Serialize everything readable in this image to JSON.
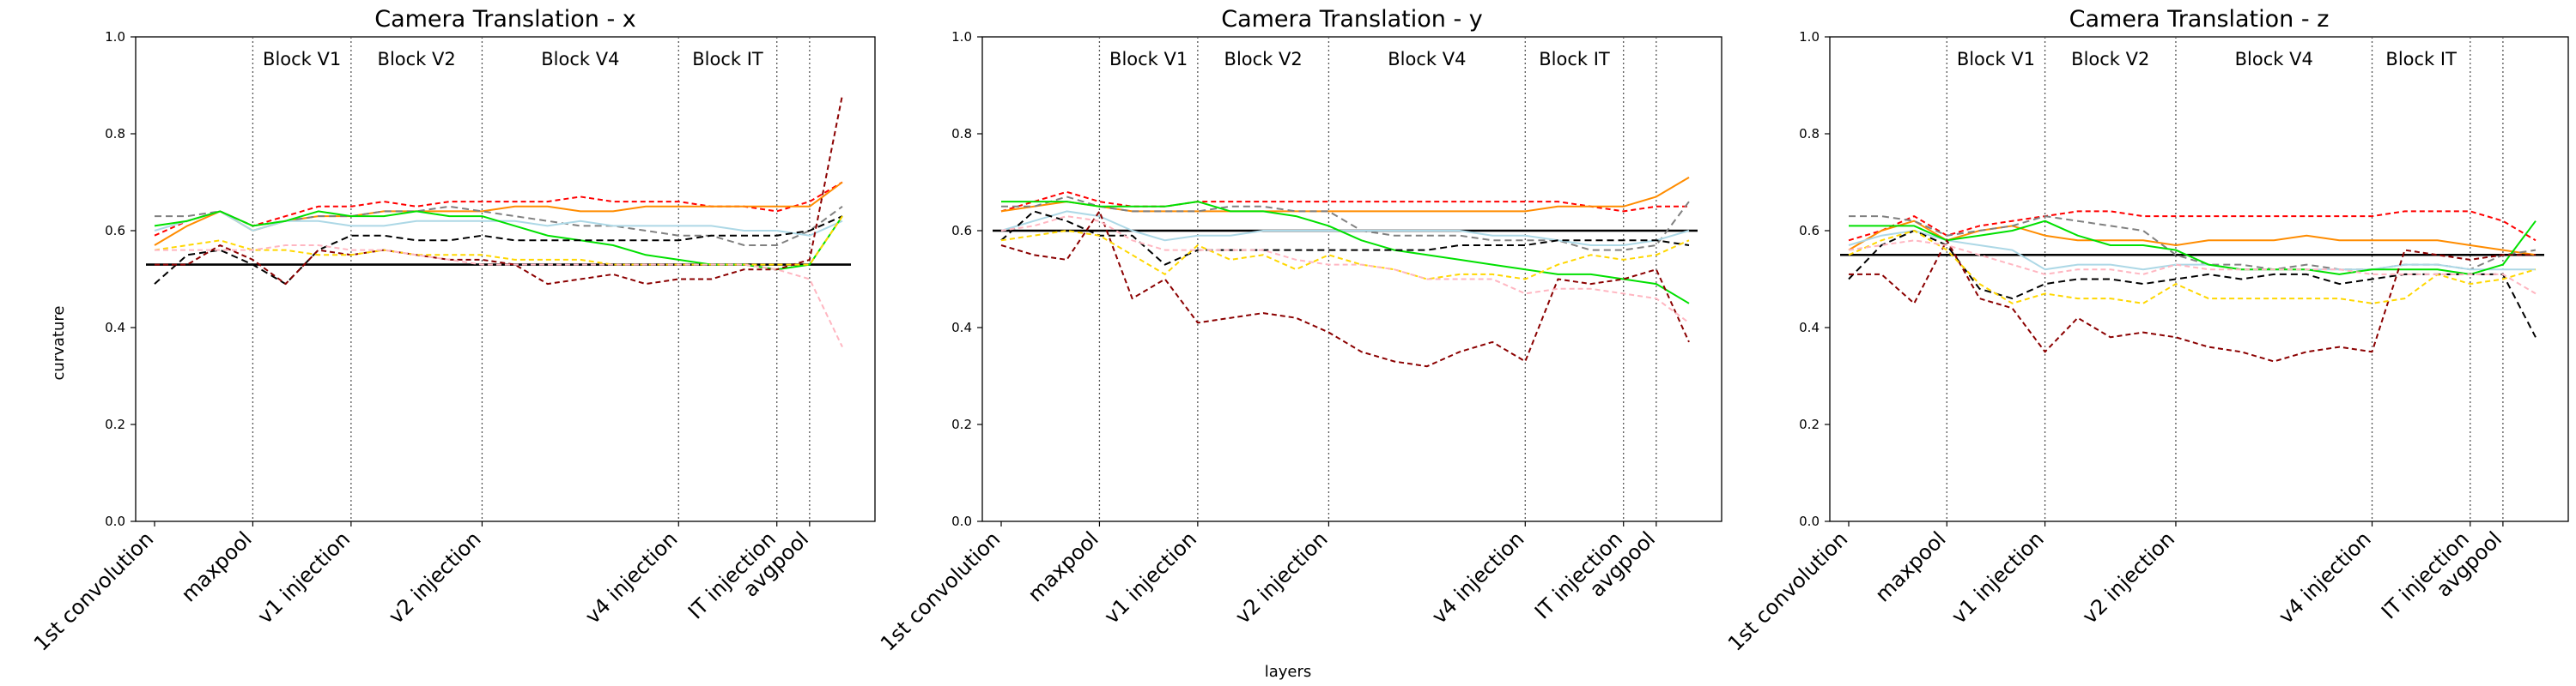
{
  "figure": {
    "xlabel": "layers",
    "ylabel": "curvature"
  },
  "chart_data": [
    {
      "type": "line",
      "title": "Camera Translation - x",
      "ylim": [
        0,
        1
      ],
      "yticks": [
        "0.0",
        "0.2",
        "0.4",
        "0.6",
        "0.8",
        "1.0"
      ],
      "x_count": 22,
      "xticks": [
        {
          "label": "1st convolution",
          "x": 0
        },
        {
          "label": "maxpool",
          "x": 3
        },
        {
          "label": "v1 injection",
          "x": 6
        },
        {
          "label": "v2 injection",
          "x": 10
        },
        {
          "label": "v4 injection",
          "x": 16
        },
        {
          "label": "IT injection",
          "x": 19
        },
        {
          "label": "avgpool",
          "x": 20
        }
      ],
      "blocks": [
        {
          "label": "Block V1",
          "x": 4.5
        },
        {
          "label": "Block V2",
          "x": 8
        },
        {
          "label": "Block V4",
          "x": 13
        },
        {
          "label": "Block IT",
          "x": 17.5
        }
      ],
      "hline": {
        "value": 0.53,
        "color": "#000000"
      },
      "series": [
        {
          "color": "#ff0000",
          "dash": "6,4",
          "values": [
            0.59,
            0.62,
            0.64,
            0.61,
            0.63,
            0.65,
            0.65,
            0.66,
            0.65,
            0.66,
            0.66,
            0.66,
            0.66,
            0.67,
            0.66,
            0.66,
            0.66,
            0.65,
            0.65,
            0.64,
            0.66,
            0.7
          ]
        },
        {
          "color": "#ff8c00",
          "dash": "",
          "values": [
            0.57,
            0.61,
            0.64,
            0.6,
            0.62,
            0.63,
            0.63,
            0.64,
            0.64,
            0.64,
            0.64,
            0.65,
            0.65,
            0.64,
            0.64,
            0.65,
            0.65,
            0.65,
            0.65,
            0.65,
            0.65,
            0.7
          ]
        },
        {
          "color": "#808080",
          "dash": "8,5",
          "values": [
            0.63,
            0.63,
            0.64,
            0.61,
            0.62,
            0.63,
            0.63,
            0.64,
            0.64,
            0.65,
            0.64,
            0.63,
            0.62,
            0.61,
            0.61,
            0.6,
            0.59,
            0.59,
            0.57,
            0.57,
            0.6,
            0.65
          ]
        },
        {
          "color": "#add8e6",
          "dash": "",
          "values": [
            0.6,
            0.62,
            0.64,
            0.6,
            0.62,
            0.62,
            0.61,
            0.61,
            0.62,
            0.62,
            0.62,
            0.62,
            0.61,
            0.62,
            0.61,
            0.61,
            0.61,
            0.61,
            0.6,
            0.6,
            0.59,
            0.62
          ]
        },
        {
          "color": "#00e000",
          "dash": "",
          "values": [
            0.61,
            0.62,
            0.64,
            0.61,
            0.62,
            0.64,
            0.63,
            0.63,
            0.64,
            0.63,
            0.63,
            0.61,
            0.59,
            0.58,
            0.57,
            0.55,
            0.54,
            0.53,
            0.53,
            0.52,
            0.53,
            0.63
          ]
        },
        {
          "color": "#000000",
          "dash": "8,5",
          "values": [
            0.49,
            0.55,
            0.56,
            0.53,
            0.49,
            0.56,
            0.59,
            0.59,
            0.58,
            0.58,
            0.59,
            0.58,
            0.58,
            0.58,
            0.58,
            0.58,
            0.58,
            0.59,
            0.59,
            0.59,
            0.6,
            0.63
          ]
        },
        {
          "color": "#8b0000",
          "dash": "6,4",
          "values": [
            0.53,
            0.53,
            0.57,
            0.54,
            0.49,
            0.56,
            0.55,
            0.56,
            0.55,
            0.54,
            0.54,
            0.53,
            0.49,
            0.5,
            0.51,
            0.49,
            0.5,
            0.5,
            0.52,
            0.52,
            0.54,
            0.88
          ]
        },
        {
          "color": "#ffd700",
          "dash": "6,4",
          "values": [
            0.56,
            0.57,
            0.58,
            0.56,
            0.56,
            0.55,
            0.55,
            0.56,
            0.55,
            0.55,
            0.55,
            0.54,
            0.54,
            0.54,
            0.53,
            0.53,
            0.53,
            0.53,
            0.53,
            0.53,
            0.53,
            0.63
          ]
        },
        {
          "color": "#ffb6c1",
          "dash": "6,4",
          "values": [
            0.56,
            0.56,
            0.56,
            0.56,
            0.57,
            0.57,
            0.56,
            0.56,
            0.55,
            0.54,
            0.53,
            0.53,
            0.53,
            0.53,
            0.53,
            0.53,
            0.53,
            0.53,
            0.53,
            0.52,
            0.5,
            0.36
          ]
        }
      ]
    },
    {
      "type": "line",
      "title": "Camera Translation - y",
      "ylim": [
        0,
        1
      ],
      "yticks": [
        "0.0",
        "0.2",
        "0.4",
        "0.6",
        "0.8",
        "1.0"
      ],
      "x_count": 22,
      "xticks": [
        {
          "label": "1st convolution",
          "x": 0
        },
        {
          "label": "maxpool",
          "x": 3
        },
        {
          "label": "v1 injection",
          "x": 6
        },
        {
          "label": "v2 injection",
          "x": 10
        },
        {
          "label": "v4 injection",
          "x": 16
        },
        {
          "label": "IT injection",
          "x": 19
        },
        {
          "label": "avgpool",
          "x": 20
        }
      ],
      "blocks": [
        {
          "label": "Block V1",
          "x": 4.5
        },
        {
          "label": "Block V2",
          "x": 8
        },
        {
          "label": "Block V4",
          "x": 13
        },
        {
          "label": "Block IT",
          "x": 17.5
        }
      ],
      "hline": {
        "value": 0.6,
        "color": "#000000"
      },
      "series": [
        {
          "color": "#ff0000",
          "dash": "6,4",
          "values": [
            0.64,
            0.66,
            0.68,
            0.66,
            0.65,
            0.65,
            0.66,
            0.66,
            0.66,
            0.66,
            0.66,
            0.66,
            0.66,
            0.66,
            0.66,
            0.66,
            0.66,
            0.66,
            0.65,
            0.64,
            0.65,
            0.65
          ]
        },
        {
          "color": "#ff8c00",
          "dash": "",
          "values": [
            0.64,
            0.65,
            0.66,
            0.65,
            0.64,
            0.64,
            0.64,
            0.64,
            0.64,
            0.64,
            0.64,
            0.64,
            0.64,
            0.64,
            0.64,
            0.64,
            0.64,
            0.65,
            0.65,
            0.65,
            0.67,
            0.71
          ]
        },
        {
          "color": "#808080",
          "dash": "8,5",
          "values": [
            0.65,
            0.65,
            0.67,
            0.65,
            0.64,
            0.64,
            0.64,
            0.65,
            0.65,
            0.64,
            0.64,
            0.6,
            0.59,
            0.59,
            0.59,
            0.58,
            0.58,
            0.58,
            0.56,
            0.56,
            0.57,
            0.66
          ]
        },
        {
          "color": "#add8e6",
          "dash": "",
          "values": [
            0.6,
            0.62,
            0.64,
            0.63,
            0.6,
            0.58,
            0.59,
            0.59,
            0.6,
            0.6,
            0.6,
            0.6,
            0.6,
            0.6,
            0.6,
            0.59,
            0.59,
            0.58,
            0.57,
            0.57,
            0.58,
            0.6
          ]
        },
        {
          "color": "#00e000",
          "dash": "",
          "values": [
            0.66,
            0.66,
            0.66,
            0.65,
            0.65,
            0.65,
            0.66,
            0.64,
            0.64,
            0.63,
            0.61,
            0.58,
            0.56,
            0.55,
            0.54,
            0.53,
            0.52,
            0.51,
            0.51,
            0.5,
            0.49,
            0.45
          ]
        },
        {
          "color": "#000000",
          "dash": "8,5",
          "values": [
            0.58,
            0.64,
            0.62,
            0.59,
            0.59,
            0.53,
            0.56,
            0.56,
            0.56,
            0.56,
            0.56,
            0.56,
            0.56,
            0.56,
            0.57,
            0.57,
            0.57,
            0.58,
            0.58,
            0.58,
            0.58,
            0.57
          ]
        },
        {
          "color": "#8b0000",
          "dash": "6,4",
          "values": [
            0.57,
            0.55,
            0.54,
            0.64,
            0.46,
            0.5,
            0.41,
            0.42,
            0.43,
            0.42,
            0.39,
            0.35,
            0.33,
            0.32,
            0.35,
            0.37,
            0.33,
            0.5,
            0.49,
            0.5,
            0.52,
            0.37
          ]
        },
        {
          "color": "#ffd700",
          "dash": "6,4",
          "values": [
            0.58,
            0.59,
            0.6,
            0.59,
            0.55,
            0.51,
            0.57,
            0.54,
            0.55,
            0.52,
            0.55,
            0.53,
            0.52,
            0.5,
            0.51,
            0.51,
            0.5,
            0.53,
            0.55,
            0.54,
            0.55,
            0.58
          ]
        },
        {
          "color": "#ffb6c1",
          "dash": "6,4",
          "values": [
            0.6,
            0.61,
            0.63,
            0.62,
            0.58,
            0.56,
            0.56,
            0.56,
            0.56,
            0.54,
            0.53,
            0.53,
            0.52,
            0.5,
            0.5,
            0.5,
            0.47,
            0.48,
            0.48,
            0.47,
            0.46,
            0.41
          ]
        }
      ]
    },
    {
      "type": "line",
      "title": "Camera Translation - z",
      "ylim": [
        0,
        1
      ],
      "yticks": [
        "0.0",
        "0.2",
        "0.4",
        "0.6",
        "0.8",
        "1.0"
      ],
      "x_count": 22,
      "xticks": [
        {
          "label": "1st convolution",
          "x": 0
        },
        {
          "label": "maxpool",
          "x": 3
        },
        {
          "label": "v1 injection",
          "x": 6
        },
        {
          "label": "v2 injection",
          "x": 10
        },
        {
          "label": "v4 injection",
          "x": 16
        },
        {
          "label": "IT injection",
          "x": 19
        },
        {
          "label": "avgpool",
          "x": 20
        }
      ],
      "blocks": [
        {
          "label": "Block V1",
          "x": 4.5
        },
        {
          "label": "Block V2",
          "x": 8
        },
        {
          "label": "Block V4",
          "x": 13
        },
        {
          "label": "Block IT",
          "x": 17.5
        }
      ],
      "hline": {
        "value": 0.55,
        "color": "#000000"
      },
      "series": [
        {
          "color": "#ff0000",
          "dash": "6,4",
          "values": [
            0.58,
            0.6,
            0.63,
            0.59,
            0.61,
            0.62,
            0.63,
            0.64,
            0.64,
            0.63,
            0.63,
            0.63,
            0.63,
            0.63,
            0.63,
            0.63,
            0.63,
            0.64,
            0.64,
            0.64,
            0.62,
            0.58
          ]
        },
        {
          "color": "#ff8c00",
          "dash": "",
          "values": [
            0.56,
            0.6,
            0.62,
            0.58,
            0.6,
            0.61,
            0.59,
            0.58,
            0.58,
            0.58,
            0.57,
            0.58,
            0.58,
            0.58,
            0.59,
            0.58,
            0.58,
            0.58,
            0.58,
            0.57,
            0.56,
            0.55
          ]
        },
        {
          "color": "#808080",
          "dash": "8,5",
          "values": [
            0.63,
            0.63,
            0.62,
            0.59,
            0.6,
            0.61,
            0.63,
            0.62,
            0.61,
            0.6,
            0.55,
            0.53,
            0.53,
            0.52,
            0.53,
            0.52,
            0.52,
            0.53,
            0.53,
            0.52,
            0.55,
            0.56
          ]
        },
        {
          "color": "#add8e6",
          "dash": "",
          "values": [
            0.57,
            0.59,
            0.6,
            0.58,
            0.57,
            0.56,
            0.52,
            0.53,
            0.53,
            0.52,
            0.53,
            0.53,
            0.52,
            0.52,
            0.52,
            0.52,
            0.52,
            0.53,
            0.53,
            0.52,
            0.52,
            0.52
          ]
        },
        {
          "color": "#00e000",
          "dash": "",
          "values": [
            0.61,
            0.61,
            0.61,
            0.58,
            0.59,
            0.6,
            0.62,
            0.59,
            0.57,
            0.57,
            0.56,
            0.53,
            0.52,
            0.52,
            0.52,
            0.51,
            0.52,
            0.52,
            0.52,
            0.51,
            0.53,
            0.62
          ]
        },
        {
          "color": "#000000",
          "dash": "8,5",
          "values": [
            0.5,
            0.57,
            0.6,
            0.57,
            0.48,
            0.46,
            0.49,
            0.5,
            0.5,
            0.49,
            0.5,
            0.51,
            0.5,
            0.51,
            0.51,
            0.49,
            0.5,
            0.51,
            0.51,
            0.51,
            0.51,
            0.38
          ]
        },
        {
          "color": "#8b0000",
          "dash": "6,4",
          "values": [
            0.51,
            0.51,
            0.45,
            0.58,
            0.46,
            0.44,
            0.35,
            0.42,
            0.38,
            0.39,
            0.38,
            0.36,
            0.35,
            0.33,
            0.35,
            0.36,
            0.35,
            0.56,
            0.55,
            0.54,
            0.55,
            0.55
          ]
        },
        {
          "color": "#ffd700",
          "dash": "6,4",
          "values": [
            0.55,
            0.58,
            0.6,
            0.56,
            0.49,
            0.45,
            0.47,
            0.46,
            0.46,
            0.45,
            0.49,
            0.46,
            0.46,
            0.46,
            0.46,
            0.46,
            0.45,
            0.46,
            0.51,
            0.49,
            0.5,
            0.52
          ]
        },
        {
          "color": "#ffb6c1",
          "dash": "6,4",
          "values": [
            0.56,
            0.57,
            0.58,
            0.57,
            0.55,
            0.53,
            0.51,
            0.52,
            0.52,
            0.51,
            0.53,
            0.52,
            0.52,
            0.52,
            0.52,
            0.52,
            0.51,
            0.51,
            0.51,
            0.51,
            0.51,
            0.47
          ]
        }
      ]
    }
  ]
}
